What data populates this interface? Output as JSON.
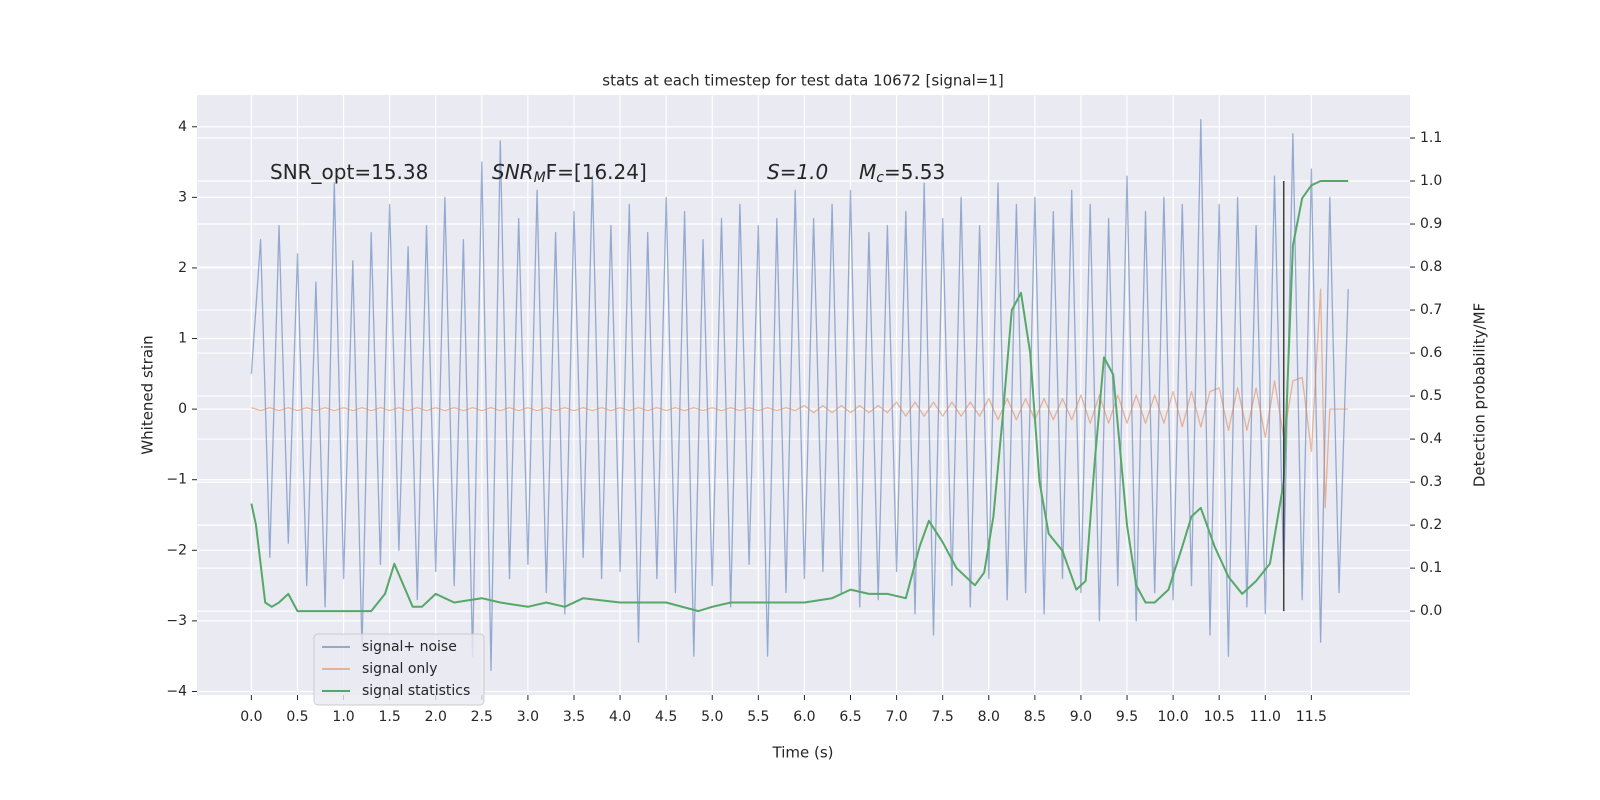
{
  "chart_data": {
    "type": "line",
    "title": "stats at each timestep for test data 10672 [signal=1]",
    "x_label": "Time (s)",
    "y_label": "Whitened strain",
    "y2_label": "Detection probability/MF",
    "xlim": [
      -0.59,
      12.57
    ],
    "ylim": [
      -4.05,
      4.45
    ],
    "y2lim": [
      -0.195,
      1.2
    ],
    "grid": true,
    "legend": "lower left",
    "xticks": [
      {
        "value": 0,
        "label": "0.0"
      },
      {
        "value": 0.5,
        "label": "0.5"
      },
      {
        "value": 1,
        "label": "1.0"
      },
      {
        "value": 1.5,
        "label": "1.5"
      },
      {
        "value": 2,
        "label": "2.0"
      },
      {
        "value": 2.5,
        "label": "2.5"
      },
      {
        "value": 3,
        "label": "3.0"
      },
      {
        "value": 3.5,
        "label": "3.5"
      },
      {
        "value": 4,
        "label": "4.0"
      },
      {
        "value": 4.5,
        "label": "4.5"
      },
      {
        "value": 5,
        "label": "5.0"
      },
      {
        "value": 5.5,
        "label": "5.5"
      },
      {
        "value": 6,
        "label": "6.0"
      },
      {
        "value": 6.5,
        "label": "6.5"
      },
      {
        "value": 7,
        "label": "7.0"
      },
      {
        "value": 7.5,
        "label": "7.5"
      },
      {
        "value": 8,
        "label": "8.0"
      },
      {
        "value": 8.5,
        "label": "8.5"
      },
      {
        "value": 9,
        "label": "9.0"
      },
      {
        "value": 9.5,
        "label": "9.5"
      },
      {
        "value": 10,
        "label": "10.0"
      },
      {
        "value": 10.5,
        "label": "10.5"
      },
      {
        "value": 11,
        "label": "11.0"
      },
      {
        "value": 11.5,
        "label": "11.5"
      }
    ],
    "yticks": [
      {
        "value": -4,
        "label": "−4"
      },
      {
        "value": -3,
        "label": "−3"
      },
      {
        "value": -2,
        "label": "−2"
      },
      {
        "value": -1,
        "label": "−1"
      },
      0,
      1,
      2,
      3,
      4
    ],
    "y2ticks": [
      {
        "value": 0,
        "label": "0.0"
      },
      {
        "value": 0.1,
        "label": "0.1"
      },
      {
        "value": 0.2,
        "label": "0.2"
      },
      {
        "value": 0.3,
        "label": "0.3"
      },
      {
        "value": 0.4,
        "label": "0.4"
      },
      {
        "value": 0.5,
        "label": "0.5"
      },
      {
        "value": 0.6,
        "label": "0.6"
      },
      {
        "value": 0.7,
        "label": "0.7"
      },
      {
        "value": 0.8,
        "label": "0.8"
      },
      {
        "value": 0.9,
        "label": "0.9"
      },
      {
        "value": 1,
        "label": "1.0"
      },
      {
        "value": 1.1,
        "label": "1.1"
      }
    ],
    "annotations": [
      {
        "base": "SNR_opt=15.38"
      },
      {
        "base": "SNR",
        "sub": "M",
        "after": "F=[16.24]"
      },
      {
        "base": "S=1.0"
      },
      {
        "base": "M",
        "sub": "c",
        "after": "=5.53"
      }
    ],
    "vline": {
      "x": 11.2,
      "y2": [
        0,
        1.0
      ],
      "color": "#404040"
    },
    "series": [
      {
        "name": "signal+ noise",
        "color": "#4c72b0",
        "x": [
          0,
          0.1,
          0.2,
          0.3,
          0.4,
          0.5,
          0.6,
          0.7,
          0.8,
          0.9,
          1,
          1.1,
          1.2,
          1.3,
          1.4,
          1.5,
          1.6,
          1.7,
          1.8,
          1.9,
          2,
          2.1,
          2.2,
          2.3,
          2.4,
          2.5,
          2.6,
          2.7,
          2.8,
          2.9,
          3,
          3.1,
          3.2,
          3.3,
          3.4,
          3.5,
          3.6,
          3.7,
          3.8,
          3.9,
          4,
          4.1,
          4.2,
          4.3,
          4.4,
          4.5,
          4.6,
          4.7,
          4.8,
          4.9,
          5,
          5.1,
          5.2,
          5.3,
          5.4,
          5.5,
          5.6,
          5.7,
          5.8,
          5.9,
          6,
          6.1,
          6.2,
          6.3,
          6.4,
          6.5,
          6.6,
          6.7,
          6.8,
          6.9,
          7,
          7.1,
          7.2,
          7.3,
          7.4,
          7.5,
          7.6,
          7.7,
          7.8,
          7.9,
          8,
          8.1,
          8.2,
          8.3,
          8.4,
          8.5,
          8.6,
          8.7,
          8.8,
          8.9,
          9,
          9.1,
          9.2,
          9.3,
          9.4,
          9.5,
          9.6,
          9.7,
          9.8,
          9.9,
          10,
          10.1,
          10.2,
          10.3,
          10.4,
          10.5,
          10.6,
          10.7,
          10.8,
          10.9,
          11,
          11.1,
          11.2,
          11.3,
          11.4,
          11.5,
          11.6,
          11.7,
          11.8,
          11.9
        ],
        "values": [
          0.5,
          2.4,
          -2.1,
          2.6,
          -1.9,
          2.2,
          -2.5,
          1.8,
          -2.8,
          3.2,
          -2.4,
          2.1,
          -3.4,
          2.5,
          -2.2,
          2.9,
          -2.0,
          2.3,
          -2.7,
          2.6,
          -2.3,
          3.0,
          -2.5,
          2.4,
          -3.5,
          3.5,
          -3.7,
          3.8,
          -2.4,
          2.7,
          -2.2,
          3.1,
          -2.6,
          2.5,
          -2.9,
          2.8,
          -2.1,
          3.3,
          -2.4,
          2.6,
          -2.3,
          2.9,
          -3.3,
          2.5,
          -2.4,
          3.0,
          -2.6,
          2.8,
          -3.5,
          2.4,
          -2.5,
          2.7,
          -2.8,
          2.9,
          -2.2,
          2.6,
          -3.5,
          2.7,
          -2.6,
          3.1,
          -2.4,
          2.7,
          -2.3,
          2.9,
          -2.6,
          3.1,
          -2.8,
          2.5,
          -2.7,
          2.6,
          -2.3,
          2.8,
          -2.9,
          3.2,
          -3.2,
          2.7,
          -2.5,
          3.0,
          -2.8,
          2.6,
          -2.4,
          3.2,
          -2.7,
          2.9,
          -2.6,
          3.0,
          -2.9,
          2.8,
          -2.4,
          3.1,
          -2.6,
          2.9,
          -3.0,
          2.7,
          -2.5,
          3.3,
          -3.0,
          2.8,
          -2.6,
          3.0,
          -2.7,
          2.9,
          -2.5,
          4.1,
          -3.2,
          2.9,
          -3.5,
          3.0,
          -2.8,
          2.6,
          -2.9,
          3.3,
          -2.4,
          3.9,
          -2.7,
          3.4,
          -3.3,
          3.0,
          -2.6,
          1.7
        ]
      },
      {
        "name": "signal only",
        "color": "#dd8452",
        "x": [
          0,
          0.1,
          0.2,
          0.3,
          0.4,
          0.5,
          0.6,
          0.7,
          0.8,
          0.9,
          1,
          1.1,
          1.2,
          1.3,
          1.4,
          1.5,
          1.6,
          1.7,
          1.8,
          1.9,
          2,
          2.1,
          2.2,
          2.3,
          2.4,
          2.5,
          2.6,
          2.7,
          2.8,
          2.9,
          3,
          3.1,
          3.2,
          3.3,
          3.4,
          3.5,
          3.6,
          3.7,
          3.8,
          3.9,
          4,
          4.1,
          4.2,
          4.3,
          4.4,
          4.5,
          4.6,
          4.7,
          4.8,
          4.9,
          5,
          5.1,
          5.2,
          5.3,
          5.4,
          5.5,
          5.6,
          5.7,
          5.8,
          5.9,
          6,
          6.1,
          6.2,
          6.3,
          6.4,
          6.5,
          6.6,
          6.7,
          6.8,
          6.9,
          7,
          7.1,
          7.2,
          7.3,
          7.4,
          7.5,
          7.6,
          7.7,
          7.8,
          7.9,
          8,
          8.1,
          8.2,
          8.3,
          8.4,
          8.5,
          8.6,
          8.7,
          8.8,
          8.9,
          9,
          9.1,
          9.2,
          9.3,
          9.4,
          9.5,
          9.6,
          9.7,
          9.8,
          9.9,
          10,
          10.1,
          10.2,
          10.3,
          10.4,
          10.5,
          10.6,
          10.7,
          10.8,
          10.9,
          11,
          11.1,
          11.2,
          11.3,
          11.4,
          11.5,
          11.6,
          11.65,
          11.7,
          11.9
        ],
        "values": [
          0.02,
          -0.02,
          0.02,
          -0.02,
          0.02,
          -0.02,
          0.02,
          -0.02,
          0.02,
          -0.02,
          0.02,
          -0.02,
          0.02,
          -0.02,
          0.02,
          -0.02,
          0.02,
          -0.02,
          0.02,
          -0.02,
          0.02,
          -0.02,
          0.02,
          -0.02,
          0.02,
          -0.02,
          0.02,
          -0.02,
          0.02,
          -0.02,
          0.02,
          -0.02,
          0.02,
          -0.02,
          0.02,
          -0.02,
          0.02,
          -0.02,
          0.02,
          -0.02,
          0.02,
          -0.02,
          0.02,
          -0.02,
          0.02,
          -0.02,
          0.02,
          -0.02,
          0.02,
          -0.02,
          0.02,
          -0.02,
          0.02,
          -0.02,
          0.02,
          -0.02,
          0.02,
          -0.02,
          0.02,
          -0.02,
          0.05,
          -0.05,
          0.05,
          -0.05,
          0.05,
          -0.05,
          0.05,
          -0.05,
          0.05,
          -0.05,
          0.1,
          -0.1,
          0.1,
          -0.1,
          0.1,
          -0.1,
          0.1,
          -0.1,
          0.1,
          -0.1,
          0.15,
          -0.15,
          0.15,
          -0.15,
          0.15,
          -0.15,
          0.15,
          -0.15,
          0.15,
          -0.15,
          0.2,
          -0.2,
          0.2,
          -0.2,
          0.2,
          -0.2,
          0.2,
          -0.2,
          0.2,
          -0.2,
          0.25,
          -0.25,
          0.25,
          -0.25,
          0.25,
          0.3,
          -0.3,
          0.3,
          -0.3,
          0.3,
          -0.4,
          0.4,
          -0.4,
          0.4,
          0.45,
          -0.6,
          1.7,
          -1.4,
          0,
          0
        ]
      },
      {
        "name": "signal statistics",
        "color": "#55a868",
        "axis": "y2",
        "x": [
          0,
          0.05,
          0.15,
          0.22,
          0.3,
          0.4,
          0.5,
          1,
          1.3,
          1.45,
          1.55,
          1.65,
          1.75,
          1.85,
          2,
          2.1,
          2.2,
          2.5,
          2.7,
          3,
          3.2,
          3.4,
          3.6,
          4,
          4.5,
          4.85,
          5,
          5.2,
          5.6,
          6,
          6.3,
          6.5,
          6.7,
          6.9,
          7.1,
          7.25,
          7.35,
          7.5,
          7.65,
          7.85,
          7.95,
          8.05,
          8.15,
          8.25,
          8.35,
          8.45,
          8.55,
          8.65,
          8.8,
          8.95,
          9.05,
          9.15,
          9.25,
          9.35,
          9.5,
          9.6,
          9.7,
          9.8,
          9.95,
          10.1,
          10.2,
          10.3,
          10.45,
          10.6,
          10.75,
          10.9,
          11.05,
          11.2,
          11.3,
          11.4,
          11.5,
          11.6,
          11.9
        ],
        "values": [
          0.25,
          0.2,
          0.02,
          0.01,
          0.02,
          0.04,
          0,
          0,
          0,
          0.04,
          0.11,
          0.06,
          0.01,
          0.01,
          0.04,
          0.03,
          0.02,
          0.03,
          0.02,
          0.01,
          0.02,
          0.01,
          0.03,
          0.02,
          0.02,
          0,
          0.01,
          0.02,
          0.02,
          0.02,
          0.03,
          0.05,
          0.04,
          0.04,
          0.03,
          0.15,
          0.21,
          0.16,
          0.1,
          0.06,
          0.09,
          0.22,
          0.45,
          0.7,
          0.74,
          0.6,
          0.3,
          0.18,
          0.14,
          0.05,
          0.07,
          0.35,
          0.59,
          0.55,
          0.2,
          0.06,
          0.02,
          0.02,
          0.05,
          0.15,
          0.22,
          0.24,
          0.15,
          0.08,
          0.04,
          0.07,
          0.11,
          0.3,
          0.85,
          0.96,
          0.99,
          1,
          1
        ]
      }
    ]
  }
}
